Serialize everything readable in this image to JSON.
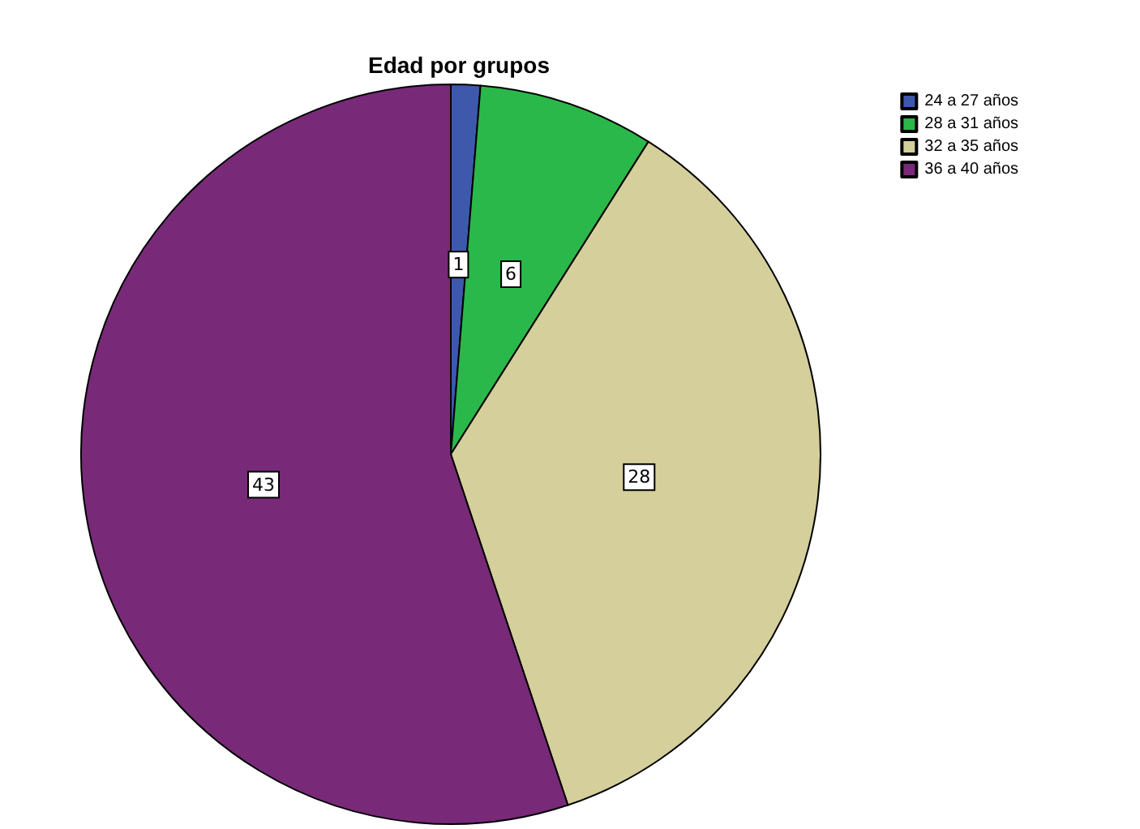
{
  "chart_data": {
    "type": "pie",
    "title": "Edad por grupos",
    "categories": [
      "24 a 27 años",
      "28 a 31 años",
      "32 a 35 años",
      "36 a 40 años"
    ],
    "values": [
      1,
      6,
      28,
      43
    ],
    "colors": [
      "#3e58ac",
      "#2bb84a",
      "#d4cf9b",
      "#782a78"
    ],
    "data_labels": true,
    "legend": "top right"
  }
}
